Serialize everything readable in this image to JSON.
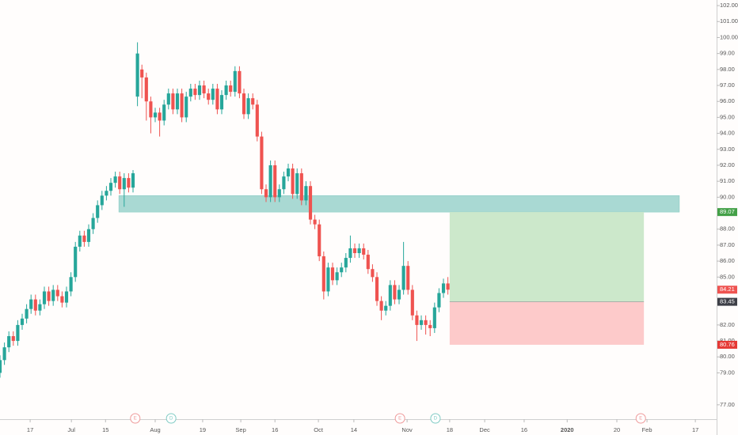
{
  "chart_data": {
    "type": "candlestick",
    "up_color": "#26a69a",
    "down_color": "#ef5350",
    "open": [
      79.0,
      79.8,
      80.6,
      81.3,
      81.0,
      82.0,
      82.4,
      83.0,
      83.6,
      82.9,
      83.3,
      84.1,
      83.5,
      84.2,
      83.8,
      83.4,
      84.1,
      85.0,
      86.9,
      87.6,
      87.2,
      88.0,
      88.7,
      89.5,
      90.1,
      90.4,
      90.9,
      91.3,
      90.5,
      91.2,
      90.6,
      96.3,
      98.0,
      97.5,
      96.0,
      95.0,
      95.3,
      94.8,
      95.8,
      96.5,
      95.5,
      96.5,
      95.0,
      96.3,
      96.8,
      96.4,
      97.0,
      96.5,
      96.1,
      96.8,
      95.5,
      96.4,
      97.0,
      96.6,
      97.9,
      96.5,
      95.2,
      96.2,
      95.8,
      93.8,
      90.5,
      90.0,
      92.0,
      90.0,
      90.5,
      91.3,
      91.8,
      90.2,
      91.5,
      89.8,
      90.7,
      88.6,
      88.3,
      86.3,
      84.1,
      85.6,
      84.8,
      85.3,
      85.6,
      86.2,
      86.8,
      86.5,
      86.8,
      86.4,
      85.5,
      85.0,
      83.5,
      82.9,
      83.2,
      84.5,
      83.6,
      84.2,
      85.7,
      84.2,
      82.6,
      82.0,
      82.3,
      82.0,
      81.8,
      83.1,
      84.0,
      84.6
    ],
    "high": [
      80.1,
      80.9,
      81.6,
      81.6,
      82.3,
      82.7,
      83.3,
      83.9,
      83.9,
      83.6,
      84.4,
      84.4,
      84.5,
      84.5,
      84.1,
      84.4,
      85.3,
      87.2,
      87.9,
      87.9,
      88.3,
      89.0,
      89.8,
      90.4,
      90.7,
      91.2,
      91.6,
      91.6,
      91.5,
      91.5,
      91.7,
      99.7,
      98.3,
      97.8,
      96.3,
      95.6,
      95.6,
      96.1,
      96.8,
      96.8,
      96.8,
      96.8,
      96.6,
      97.1,
      97.1,
      97.3,
      97.3,
      96.8,
      97.1,
      97.1,
      96.7,
      97.3,
      97.3,
      98.2,
      98.2,
      96.8,
      96.5,
      96.5,
      96.1,
      94.1,
      90.8,
      92.3,
      92.3,
      90.8,
      91.6,
      92.1,
      92.1,
      91.8,
      91.8,
      91.0,
      91.0,
      88.9,
      88.6,
      86.6,
      85.9,
      85.9,
      85.6,
      85.9,
      86.5,
      87.6,
      87.1,
      87.1,
      87.1,
      86.7,
      85.8,
      85.3,
      83.8,
      83.5,
      84.8,
      84.8,
      84.5,
      87.2,
      86.0,
      84.5,
      82.9,
      82.6,
      82.6,
      82.3,
      83.4,
      84.3,
      84.9,
      85.0
    ],
    "low": [
      78.7,
      79.5,
      80.3,
      80.7,
      80.7,
      81.7,
      82.1,
      82.7,
      82.6,
      82.6,
      83.0,
      83.2,
      83.2,
      83.5,
      83.1,
      83.1,
      83.8,
      84.7,
      86.6,
      86.9,
      86.9,
      87.7,
      88.4,
      89.2,
      89.8,
      90.1,
      90.6,
      90.2,
      89.4,
      90.3,
      90.3,
      95.7,
      96.2,
      94.8,
      94.0,
      94.7,
      93.8,
      94.5,
      95.5,
      95.2,
      95.2,
      94.7,
      94.7,
      96.0,
      96.1,
      96.1,
      96.2,
      95.8,
      95.8,
      95.2,
      95.2,
      96.1,
      96.3,
      96.3,
      96.2,
      94.9,
      94.9,
      95.5,
      93.5,
      90.2,
      89.7,
      89.7,
      89.7,
      89.7,
      90.2,
      91.0,
      89.9,
      89.9,
      89.5,
      89.5,
      88.3,
      88.0,
      86.0,
      83.6,
      83.8,
      84.5,
      84.5,
      85.0,
      85.3,
      85.9,
      86.2,
      86.2,
      86.1,
      85.2,
      84.7,
      83.2,
      82.3,
      82.6,
      82.9,
      83.3,
      83.3,
      83.9,
      83.9,
      82.3,
      81.0,
      81.7,
      81.4,
      81.3,
      81.5,
      82.8,
      83.7,
      83.9
    ],
    "close": [
      79.8,
      80.6,
      81.3,
      81.0,
      82.0,
      82.4,
      83.0,
      83.6,
      82.9,
      83.3,
      84.1,
      83.5,
      84.2,
      83.8,
      83.4,
      84.1,
      85.0,
      86.9,
      87.6,
      87.2,
      88.0,
      88.7,
      89.5,
      90.1,
      90.4,
      90.9,
      91.3,
      90.5,
      91.2,
      90.6,
      91.5,
      99.0,
      97.5,
      96.0,
      95.0,
      95.3,
      94.8,
      95.8,
      96.5,
      95.5,
      96.5,
      95.0,
      96.3,
      96.8,
      96.4,
      97.0,
      96.5,
      96.1,
      96.8,
      95.5,
      96.4,
      97.0,
      96.6,
      97.9,
      96.5,
      95.2,
      96.2,
      95.8,
      93.8,
      90.5,
      90.0,
      92.0,
      90.0,
      90.5,
      91.3,
      91.8,
      90.2,
      91.5,
      89.8,
      90.7,
      88.6,
      88.3,
      86.3,
      84.1,
      85.6,
      84.8,
      85.3,
      85.6,
      86.2,
      86.8,
      86.5,
      86.8,
      86.4,
      85.5,
      85.0,
      83.5,
      82.9,
      83.2,
      84.5,
      83.6,
      84.2,
      85.7,
      84.2,
      82.6,
      82.0,
      82.3,
      82.0,
      81.8,
      83.1,
      84.0,
      84.6,
      84.21
    ],
    "xlim": [
      0,
      161.6
    ],
    "xticks": [
      {
        "value": 6.8,
        "label": "17"
      },
      {
        "value": 16.1,
        "label": "Jul"
      },
      {
        "value": 23.8,
        "label": "15"
      },
      {
        "value": 35,
        "label": "Aug"
      },
      {
        "value": 45.7,
        "label": "19"
      },
      {
        "value": 54.3,
        "label": "Sep"
      },
      {
        "value": 62,
        "label": "16"
      },
      {
        "value": 71.8,
        "label": "Oct"
      },
      {
        "value": 79.8,
        "label": "14"
      },
      {
        "value": 91.8,
        "label": "Nov"
      },
      {
        "value": 101.4,
        "label": "18"
      },
      {
        "value": 109.3,
        "label": "Dec"
      },
      {
        "value": 118.2,
        "label": "16"
      },
      {
        "value": 127.9,
        "label": "2020"
      },
      {
        "value": 139.1,
        "label": "20"
      },
      {
        "value": 145.9,
        "label": "Feb"
      },
      {
        "value": 156.8,
        "label": "17"
      }
    ],
    "ylim": [
      76.1,
      102.35
    ],
    "yticks": [
      {
        "value": 102,
        "label": "102.00"
      },
      {
        "value": 101,
        "label": "101.00"
      },
      {
        "value": 100,
        "label": "100.00"
      },
      {
        "value": 99,
        "label": "99.00"
      },
      {
        "value": 98,
        "label": "98.00"
      },
      {
        "value": 97,
        "label": "97.00"
      },
      {
        "value": 96,
        "label": "96.00"
      },
      {
        "value": 95,
        "label": "95.00"
      },
      {
        "value": 94,
        "label": "94.00"
      },
      {
        "value": 93,
        "label": "93.00"
      },
      {
        "value": 92,
        "label": "92.00"
      },
      {
        "value": 91,
        "label": "91.00"
      },
      {
        "value": 90,
        "label": "90.00"
      },
      {
        "value": 88,
        "label": "88.00"
      },
      {
        "value": 87,
        "label": "87.00"
      },
      {
        "value": 86,
        "label": "86.00"
      },
      {
        "value": 85,
        "label": "85.00"
      },
      {
        "value": 82,
        "label": "82.00"
      },
      {
        "value": 81,
        "label": "81.00"
      },
      {
        "value": 80,
        "label": "80.00"
      },
      {
        "value": 79,
        "label": "79.00"
      },
      {
        "value": 77,
        "label": "77.00"
      }
    ],
    "zone": {
      "top": 90.1,
      "bottom": 89.07,
      "from": 26.8,
      "to": 153.2,
      "color": "#a9d9d3"
    },
    "position": {
      "entry": 83.45,
      "target": 89.07,
      "stop": 80.76,
      "from": 101.4,
      "to": 145.2,
      "profit_color": "#cce8cb",
      "loss_color": "#fdcaca"
    },
    "price_tags": [
      {
        "value": 89.07,
        "color": "#43a047"
      },
      {
        "value": 84.21,
        "color": "#ef5350"
      },
      {
        "value": 83.45,
        "color": "#3d3f47"
      },
      {
        "value": 80.76,
        "color": "#e53935"
      }
    ],
    "events": [
      {
        "label": "E",
        "x": 30.5,
        "color": "#ef9a9a"
      },
      {
        "label": "D",
        "x": 38.6,
        "color": "#80cbc4"
      },
      {
        "label": "E",
        "x": 90.2,
        "color": "#ef9a9a"
      },
      {
        "label": "D",
        "x": 98.2,
        "color": "#80cbc4"
      },
      {
        "label": "E",
        "x": 144.5,
        "color": "#ef9a9a"
      }
    ]
  }
}
